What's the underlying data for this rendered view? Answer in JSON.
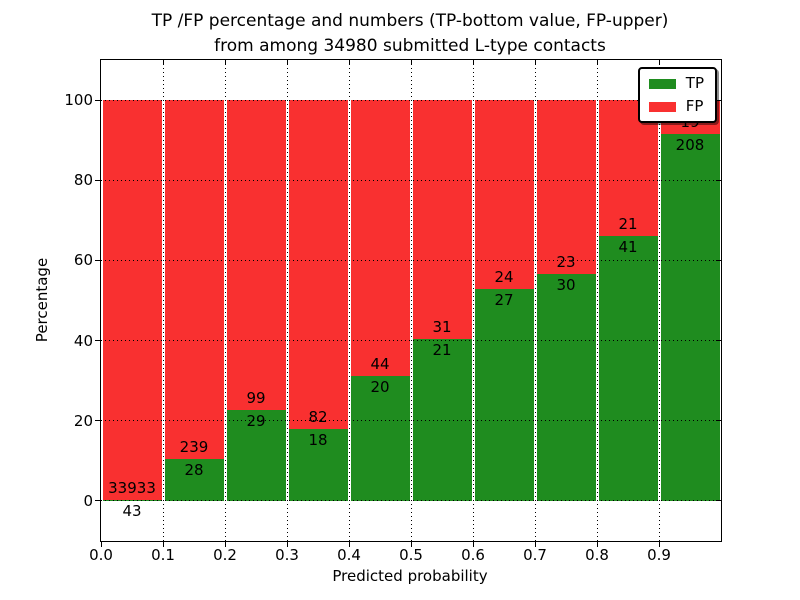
{
  "title": {
    "line1": "TP /FP percentage and numbers (TP-bottom value, FP-upper)",
    "line2": "from among 34980 submitted L-type contacts"
  },
  "chart_data": {
    "type": "bar",
    "stacked": true,
    "normalization": "each bin stacked to 100%; printed labels are raw counts (TP bottom value, FP upper)",
    "title": "TP /FP percentage and numbers (TP-bottom value, FP-upper) from among 34980 submitted L-type contacts",
    "xlabel": "Predicted probability",
    "ylabel": "Percentage",
    "total_contacts": 34980,
    "bins": [
      "0.0-0.1",
      "0.1-0.2",
      "0.2-0.3",
      "0.3-0.4",
      "0.4-0.5",
      "0.5-0.6",
      "0.6-0.7",
      "0.7-0.8",
      "0.8-0.9",
      "0.9-1.0"
    ],
    "series": [
      {
        "name": "TP",
        "color": "#1f8c1f",
        "counts": [
          43,
          28,
          29,
          18,
          20,
          21,
          27,
          30,
          41,
          208
        ]
      },
      {
        "name": "FP",
        "color": "#f93030",
        "counts": [
          33933,
          239,
          99,
          82,
          44,
          31,
          24,
          23,
          21,
          19
        ]
      }
    ],
    "tp_percent": [
      0.13,
      10.49,
      22.66,
      18.0,
      31.25,
      40.38,
      52.94,
      56.6,
      66.13,
      91.63
    ],
    "x_ticks": [
      "0.0",
      "0.1",
      "0.2",
      "0.3",
      "0.4",
      "0.5",
      "0.6",
      "0.7",
      "0.8",
      "0.9"
    ],
    "y_ticks": [
      "0",
      "20",
      "40",
      "60",
      "80",
      "100"
    ],
    "xlim": [
      0.0,
      1.0
    ],
    "ylim": [
      -10,
      110
    ],
    "grid": {
      "visible": true,
      "style": "dotted",
      "color": "#000000"
    },
    "legend": {
      "position": "upper-right",
      "entries": [
        {
          "label": "TP",
          "color": "#1f8c1f"
        },
        {
          "label": "FP",
          "color": "#f93030"
        }
      ]
    }
  }
}
